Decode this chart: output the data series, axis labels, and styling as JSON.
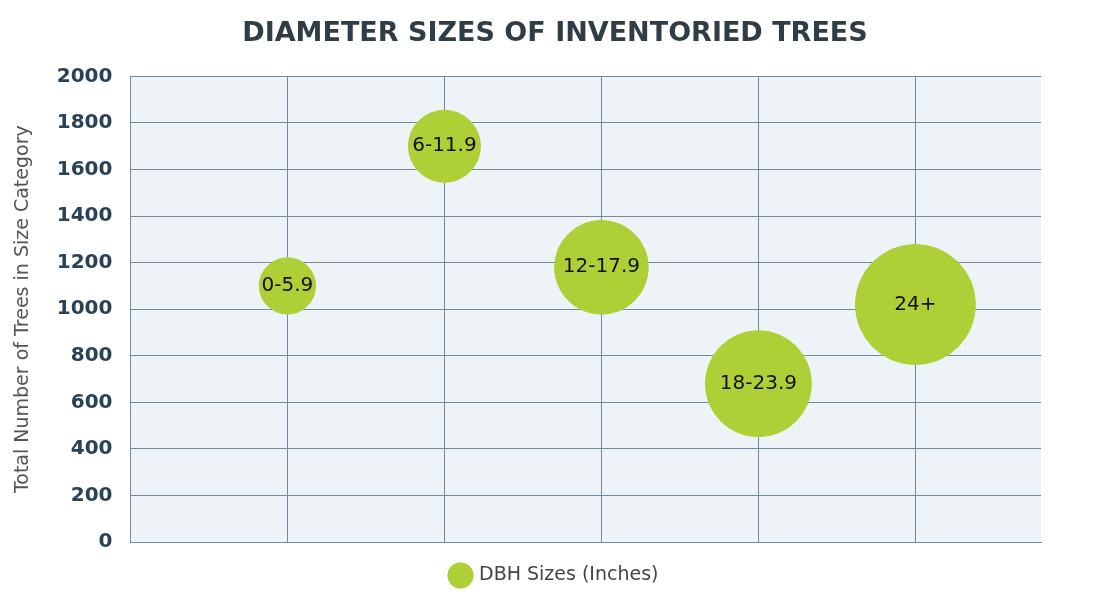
{
  "chart_data": {
    "type": "bubble",
    "title": "DIAMETER SIZES OF INVENTORIED TREES",
    "ylabel": "Total Number of Trees in Size Category",
    "categories": [
      null,
      null,
      null,
      null,
      null
    ],
    "series": [
      {
        "name": "DBH Sizes (Inches)",
        "color": "#afcf36",
        "values": [
          1100,
          1700,
          1180,
          680,
          1020
        ],
        "sizes": [
          0.22,
          0.36,
          0.61,
          0.78,
          1
        ],
        "value_labels": [
          "0-5.9",
          "6-11.9",
          "12-17.9",
          "18-23.9",
          "24+"
        ]
      }
    ],
    "ylim": [
      0,
      2000
    ],
    "yticks": [
      0,
      200,
      400,
      600,
      800,
      1000,
      1200,
      1400,
      1600,
      1800,
      2000
    ],
    "tick_labels": "y",
    "grid": true,
    "legend": "bottom"
  }
}
